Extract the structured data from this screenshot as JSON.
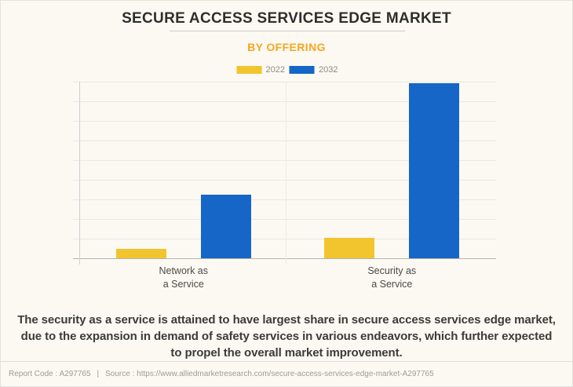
{
  "page": {
    "title": "SECURE ACCESS SERVICES EDGE MARKET",
    "subtitle": "BY OFFERING",
    "description": "The security as a service is attained to have largest share in secure access services edge market, due to the expansion in demand of safety services in various endeavors, which further expected to propel the overall market improvement.",
    "footer": {
      "report_code": "Report Code : A297765",
      "separator": "|",
      "source": "Source : https://www.alliedmarketresearch.com/secure-access-services-edge-market-A297765"
    }
  },
  "chart_data": {
    "type": "bar",
    "title": "SECURE ACCESS SERVICES EDGE MARKET",
    "subtitle": "BY OFFERING",
    "categories": [
      "Network as a Service",
      "Security as a Service"
    ],
    "category_labels_two_line": [
      [
        "Network as",
        "a Service"
      ],
      [
        "Security as",
        "a Service"
      ]
    ],
    "series": [
      {
        "name": "2022",
        "color": "#F2C42D",
        "values": [
          0.48,
          1.04
        ]
      },
      {
        "name": "2032",
        "color": "#1566C6",
        "values": [
          3.24,
          8.92
        ]
      }
    ],
    "xlabel": "",
    "ylabel": "",
    "y_axis_labels_visible": false,
    "ylim": [
      0,
      9
    ],
    "y_gridline_intervals": 9,
    "grid": true,
    "legend_position": "top",
    "note": "Y-axis has unlabeled gridlines; series values are estimated in gridline units (1 unit = 1 gridline interval)."
  },
  "colors": {
    "background": "#FCF9F2",
    "plot_gridline": "#E8E8E8",
    "plot_baseline": "#B5B5B5",
    "accent_subtitle": "#F9A51F",
    "series_2022": "#F2C42D",
    "series_2032": "#1566C6",
    "title_text": "#2E2E2E",
    "footer_text": "#9B9B9B"
  }
}
